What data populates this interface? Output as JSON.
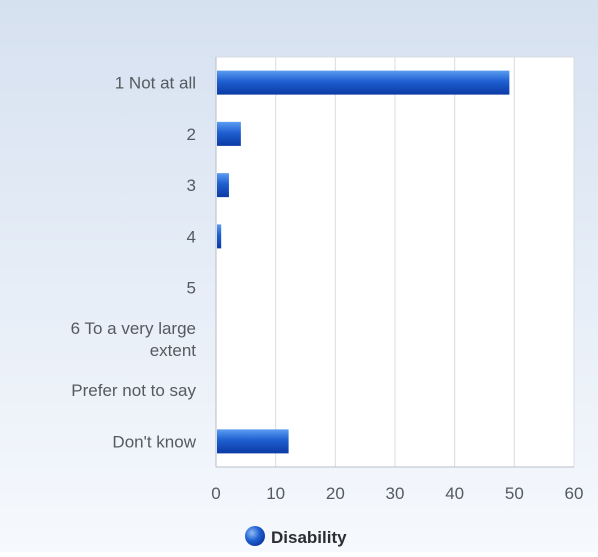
{
  "chart_data": {
    "type": "bar",
    "orientation": "horizontal",
    "categories": [
      "1 Not at all",
      "2",
      "3",
      "4",
      "5",
      "6 To a very large extent",
      "Prefer not to say",
      "Don't know"
    ],
    "category_lines": [
      [
        "1 Not at all"
      ],
      [
        "2"
      ],
      [
        "3"
      ],
      [
        "4"
      ],
      [
        "5"
      ],
      [
        "6 To a very large",
        "extent"
      ],
      [
        "Prefer not to say"
      ],
      [
        "Don't know"
      ]
    ],
    "series": [
      {
        "name": "Disability",
        "values": [
          49,
          4,
          2,
          0.7,
          0,
          0,
          0,
          12
        ]
      }
    ],
    "xlim": [
      0,
      60
    ],
    "xticks": [
      "0",
      "10",
      "20",
      "30",
      "40",
      "50",
      "60"
    ],
    "grid": true,
    "legend_position": "bottom",
    "colors": {
      "bar_light": "#5b9cf2",
      "bar_mid": "#1f5fd1",
      "bar_dark": "#0b3aa4",
      "background_top": "#d6e1f0",
      "background_bottom": "#f6f9fd",
      "grid": "#d9dde3",
      "axis": "#b8bec7"
    }
  }
}
